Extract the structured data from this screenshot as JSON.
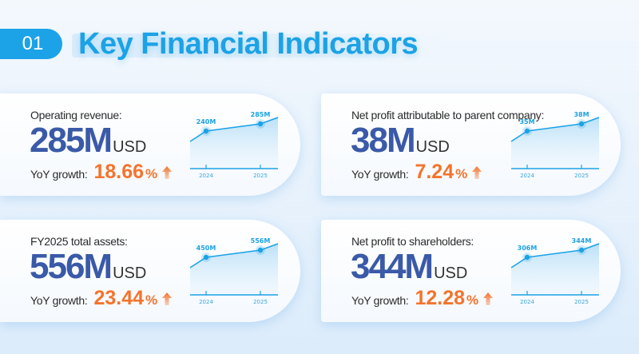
{
  "header": {
    "section_number": "01",
    "title": "Key Financial Indicators"
  },
  "colors": {
    "accent": "#1ca2e6",
    "value": "#3a5aa8",
    "growth": "#f5732b"
  },
  "cards": [
    {
      "label": "Operating revenue:",
      "value": "285M",
      "unit": "USD",
      "growth_label": "YoY growth:",
      "growth": "18.66",
      "pct": "%",
      "points": [
        {
          "year": "2024",
          "label": "240M"
        },
        {
          "year": "2025",
          "label": "285M"
        }
      ]
    },
    {
      "label": "Net profit attributable to parent company:",
      "value": "38M",
      "unit": "USD",
      "growth_label": "YoY growth:",
      "growth": "7.24",
      "pct": "%",
      "points": [
        {
          "year": "2024",
          "label": "35M"
        },
        {
          "year": "2025",
          "label": "38M"
        }
      ]
    },
    {
      "label": "FY2025 total assets:",
      "value": "556M",
      "unit": "USD",
      "growth_label": "YoY growth:",
      "growth": "23.44",
      "pct": "%",
      "points": [
        {
          "year": "2024",
          "label": "450M"
        },
        {
          "year": "2025",
          "label": "556M"
        }
      ]
    },
    {
      "label": "Net profit to shareholders:",
      "value": "344M",
      "unit": "USD",
      "growth_label": "YoY growth:",
      "growth": "12.28",
      "pct": "%",
      "points": [
        {
          "year": "2024",
          "label": "306M"
        },
        {
          "year": "2025",
          "label": "344M"
        }
      ]
    }
  ],
  "chart_data": [
    {
      "type": "area",
      "title": "Operating revenue",
      "categories": [
        "2024",
        "2025"
      ],
      "values": [
        240,
        285
      ],
      "unit": "M USD",
      "data_labels": [
        "240M",
        "285M"
      ],
      "yoy_growth_pct": 18.66,
      "grid": false
    },
    {
      "type": "area",
      "title": "Net profit attributable to parent company",
      "categories": [
        "2024",
        "2025"
      ],
      "values": [
        35,
        38
      ],
      "unit": "M USD",
      "data_labels": [
        "35M",
        "38M"
      ],
      "yoy_growth_pct": 7.24,
      "grid": false
    },
    {
      "type": "area",
      "title": "FY2025 total assets",
      "categories": [
        "2024",
        "2025"
      ],
      "values": [
        450,
        556
      ],
      "unit": "M USD",
      "data_labels": [
        "450M",
        "556M"
      ],
      "yoy_growth_pct": 23.44,
      "grid": false
    },
    {
      "type": "area",
      "title": "Net profit to shareholders",
      "categories": [
        "2024",
        "2025"
      ],
      "values": [
        306,
        344
      ],
      "unit": "M USD",
      "data_labels": [
        "306M",
        "344M"
      ],
      "yoy_growth_pct": 12.28,
      "grid": false
    }
  ]
}
